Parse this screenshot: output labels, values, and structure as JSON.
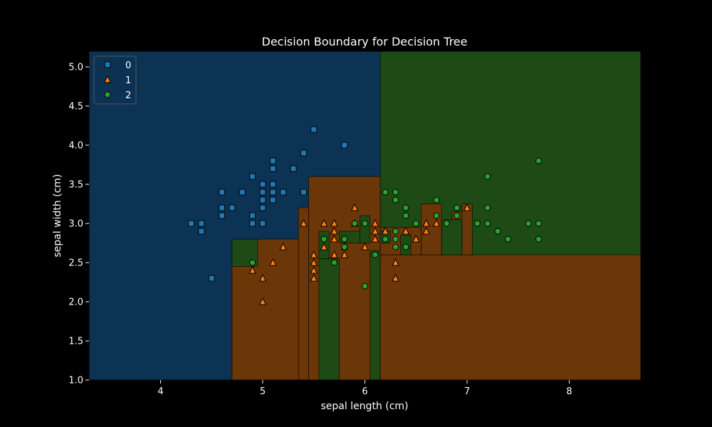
{
  "chart_data": {
    "type": "scatter",
    "title": "Decision Boundary for Decision Tree",
    "xlabel": "sepal length (cm)",
    "ylabel": "sepal width (cm)",
    "xlim": [
      3.3,
      8.7
    ],
    "ylim": [
      1.0,
      5.2
    ],
    "x_ticks": [
      4,
      5,
      6,
      7,
      8
    ],
    "y_ticks": [
      1.0,
      1.5,
      2.0,
      2.5,
      3.0,
      3.5,
      4.0,
      4.5,
      5.0
    ],
    "legend_position": "top-left",
    "colors": {
      "0": {
        "point": "#1f77b4",
        "region": "#0d3354"
      },
      "1": {
        "point": "#ff7f0e",
        "region": "#6b3708"
      },
      "2": {
        "point": "#2ca02c",
        "region": "#1e4a16"
      }
    },
    "regions": [
      {
        "class": "0",
        "x0": 3.3,
        "x1": 8.7,
        "y0": 1.0,
        "y1": 5.2
      },
      {
        "class": "2",
        "x0": 6.15,
        "x1": 8.7,
        "y0": 1.0,
        "y1": 5.2
      },
      {
        "class": "1",
        "x0": 4.7,
        "x1": 5.35,
        "y0": 1.0,
        "y1": 2.8
      },
      {
        "class": "1",
        "x0": 5.35,
        "x1": 5.45,
        "y0": 1.0,
        "y1": 3.2
      },
      {
        "class": "1",
        "x0": 5.45,
        "x1": 6.15,
        "y0": 1.0,
        "y1": 3.6
      },
      {
        "class": "1",
        "x0": 6.15,
        "x1": 8.7,
        "y0": 1.0,
        "y1": 2.6
      },
      {
        "class": "1",
        "x0": 6.15,
        "x1": 6.55,
        "y0": 2.6,
        "y1": 2.95
      },
      {
        "class": "1",
        "x0": 6.55,
        "x1": 6.75,
        "y0": 2.6,
        "y1": 3.25
      },
      {
        "class": "1",
        "x0": 6.95,
        "x1": 7.05,
        "y0": 2.6,
        "y1": 3.25
      },
      {
        "class": "1",
        "x0": 6.85,
        "x1": 6.95,
        "y0": 3.05,
        "y1": 3.15
      },
      {
        "class": "2",
        "x0": 4.7,
        "x1": 4.95,
        "y0": 2.45,
        "y1": 2.8
      },
      {
        "class": "2",
        "x0": 5.55,
        "x1": 5.75,
        "y0": 1.0,
        "y1": 2.55
      },
      {
        "class": "2",
        "x0": 5.55,
        "x1": 5.65,
        "y0": 2.55,
        "y1": 2.9
      },
      {
        "class": "2",
        "x0": 5.75,
        "x1": 5.95,
        "y0": 2.75,
        "y1": 2.9
      },
      {
        "class": "2",
        "x0": 5.95,
        "x1": 6.05,
        "y0": 2.75,
        "y1": 3.1
      },
      {
        "class": "2",
        "x0": 6.05,
        "x1": 6.15,
        "y0": 1.0,
        "y1": 2.65
      },
      {
        "class": "2",
        "x0": 6.15,
        "x1": 6.25,
        "y0": 2.75,
        "y1": 2.9
      },
      {
        "class": "2",
        "x0": 6.35,
        "x1": 6.45,
        "y0": 2.6,
        "y1": 2.85
      },
      {
        "class": "2",
        "x0": 6.75,
        "x1": 6.95,
        "y0": 2.6,
        "y1": 3.05
      }
    ],
    "series": [
      {
        "name": "0",
        "marker": "square",
        "points": [
          [
            4.3,
            3.0
          ],
          [
            4.4,
            3.0
          ],
          [
            4.4,
            2.9
          ],
          [
            4.5,
            2.3
          ],
          [
            4.6,
            3.4
          ],
          [
            4.6,
            3.2
          ],
          [
            4.6,
            3.1
          ],
          [
            4.7,
            3.2
          ],
          [
            4.8,
            3.4
          ],
          [
            4.9,
            3.6
          ],
          [
            4.9,
            3.1
          ],
          [
            4.9,
            3.0
          ],
          [
            5.0,
            3.5
          ],
          [
            5.0,
            3.4
          ],
          [
            5.0,
            3.3
          ],
          [
            5.0,
            3.2
          ],
          [
            5.0,
            3.0
          ],
          [
            5.1,
            3.8
          ],
          [
            5.1,
            3.7
          ],
          [
            5.1,
            3.5
          ],
          [
            5.1,
            3.4
          ],
          [
            5.1,
            3.3
          ],
          [
            5.2,
            3.4
          ],
          [
            5.3,
            3.7
          ],
          [
            5.4,
            3.9
          ],
          [
            5.4,
            3.4
          ],
          [
            5.5,
            4.2
          ],
          [
            5.8,
            4.0
          ]
        ]
      },
      {
        "name": "1",
        "marker": "triangle",
        "points": [
          [
            4.9,
            2.4
          ],
          [
            5.0,
            2.3
          ],
          [
            5.0,
            2.0
          ],
          [
            5.1,
            2.5
          ],
          [
            5.2,
            2.7
          ],
          [
            5.4,
            3.0
          ],
          [
            5.5,
            2.6
          ],
          [
            5.5,
            2.5
          ],
          [
            5.5,
            2.4
          ],
          [
            5.5,
            2.3
          ],
          [
            5.6,
            3.0
          ],
          [
            5.6,
            2.7
          ],
          [
            5.7,
            3.0
          ],
          [
            5.7,
            2.9
          ],
          [
            5.7,
            2.8
          ],
          [
            5.7,
            2.6
          ],
          [
            5.8,
            2.7
          ],
          [
            5.8,
            2.6
          ],
          [
            5.9,
            3.2
          ],
          [
            5.9,
            3.0
          ],
          [
            6.0,
            2.7
          ],
          [
            6.1,
            3.0
          ],
          [
            6.1,
            2.9
          ],
          [
            6.1,
            2.8
          ],
          [
            6.2,
            2.9
          ],
          [
            6.3,
            2.5
          ],
          [
            6.3,
            2.3
          ],
          [
            6.4,
            2.9
          ],
          [
            6.5,
            2.8
          ],
          [
            6.6,
            3.0
          ],
          [
            6.6,
            2.9
          ],
          [
            6.7,
            3.0
          ],
          [
            7.0,
            3.2
          ]
        ]
      },
      {
        "name": "2",
        "marker": "circle",
        "points": [
          [
            4.9,
            2.5
          ],
          [
            5.6,
            2.8
          ],
          [
            5.7,
            2.5
          ],
          [
            5.8,
            2.8
          ],
          [
            5.8,
            2.7
          ],
          [
            5.9,
            3.0
          ],
          [
            6.0,
            3.0
          ],
          [
            6.0,
            2.2
          ],
          [
            6.1,
            2.6
          ],
          [
            6.2,
            3.4
          ],
          [
            6.2,
            2.8
          ],
          [
            6.3,
            3.4
          ],
          [
            6.3,
            3.3
          ],
          [
            6.3,
            2.9
          ],
          [
            6.3,
            2.8
          ],
          [
            6.3,
            2.7
          ],
          [
            6.4,
            3.2
          ],
          [
            6.4,
            3.1
          ],
          [
            6.4,
            2.7
          ],
          [
            6.5,
            3.0
          ],
          [
            6.7,
            3.3
          ],
          [
            6.7,
            3.1
          ],
          [
            6.8,
            3.0
          ],
          [
            6.9,
            3.2
          ],
          [
            6.9,
            3.1
          ],
          [
            7.1,
            3.0
          ],
          [
            7.2,
            3.6
          ],
          [
            7.2,
            3.2
          ],
          [
            7.2,
            3.0
          ],
          [
            7.3,
            2.9
          ],
          [
            7.4,
            2.8
          ],
          [
            7.6,
            3.0
          ],
          [
            7.7,
            3.8
          ],
          [
            7.7,
            3.0
          ],
          [
            7.7,
            2.8
          ]
        ]
      }
    ]
  }
}
